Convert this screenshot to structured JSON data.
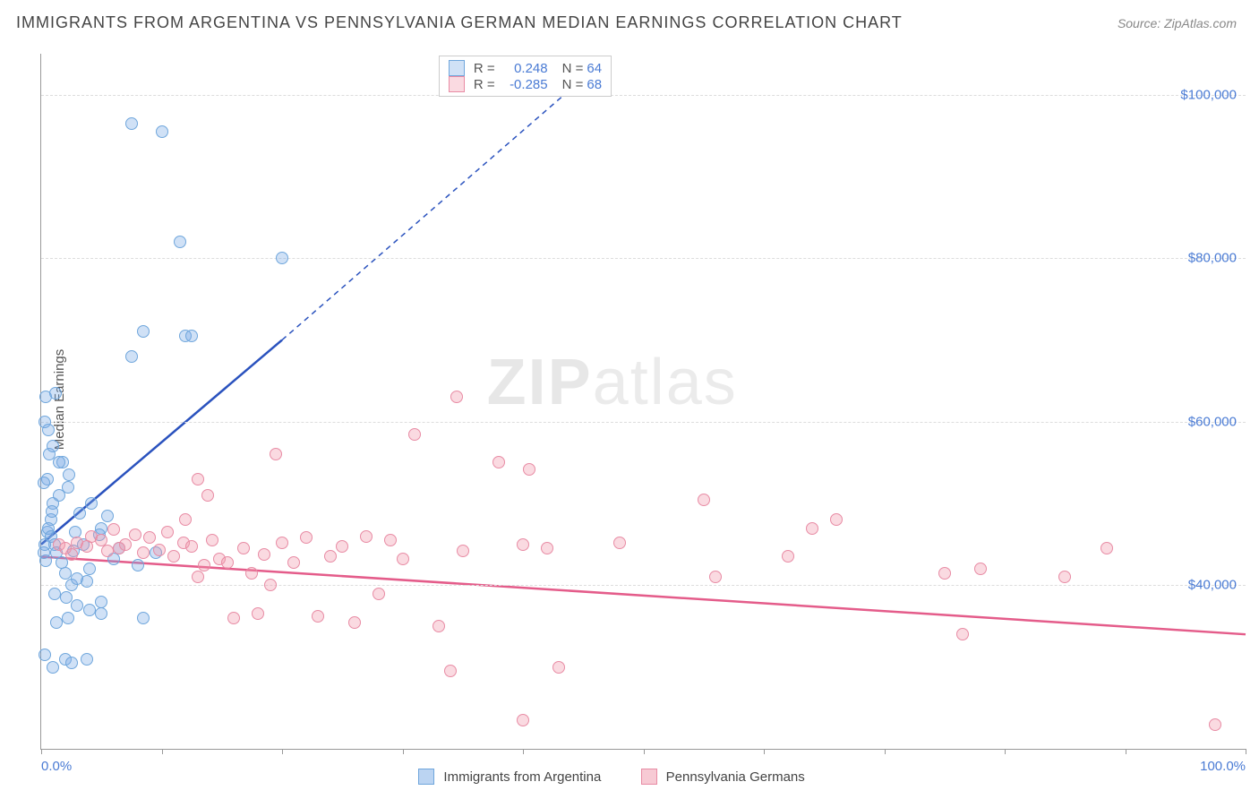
{
  "title": "IMMIGRANTS FROM ARGENTINA VS PENNSYLVANIA GERMAN MEDIAN EARNINGS CORRELATION CHART",
  "source": "Source: ZipAtlas.com",
  "ylabel": "Median Earnings",
  "watermark_a": "ZIP",
  "watermark_b": "atlas",
  "chart": {
    "type": "scatter",
    "xlim": [
      0,
      100
    ],
    "ylim": [
      20000,
      105000
    ],
    "yticks": [
      40000,
      60000,
      80000,
      100000
    ],
    "ytick_labels": [
      "$40,000",
      "$60,000",
      "$80,000",
      "$100,000"
    ],
    "xticks": [
      0,
      10,
      20,
      30,
      40,
      50,
      60,
      70,
      80,
      90,
      100
    ],
    "xmin_label": "0.0%",
    "xmax_label": "100.0%",
    "grid_color": "#dddddd",
    "marker_radius": 7,
    "series": [
      {
        "name": "Immigrants from Argentina",
        "fill": "rgba(120,170,230,0.35)",
        "stroke": "#6fa6dc",
        "line_color": "#2a52be",
        "r_label": "R =",
        "r_value": "0.248",
        "n_label": "N =",
        "n_value": "64",
        "regression": {
          "x1": 0,
          "y1": 45000,
          "x2": 20,
          "y2": 70000,
          "dash_to_x": 45,
          "dash_to_y": 102000
        },
        "points": [
          [
            0.3,
            45000
          ],
          [
            0.5,
            46500
          ],
          [
            0.8,
            48000
          ],
          [
            0.4,
            43000
          ],
          [
            1.0,
            50000
          ],
          [
            0.6,
            47000
          ],
          [
            0.2,
            44000
          ],
          [
            0.9,
            49000
          ],
          [
            0.4,
            63000
          ],
          [
            1.2,
            63500
          ],
          [
            1.8,
            55000
          ],
          [
            2.2,
            52000
          ],
          [
            0.7,
            56000
          ],
          [
            1.5,
            55000
          ],
          [
            1.0,
            57000
          ],
          [
            0.5,
            53000
          ],
          [
            0.3,
            60000
          ],
          [
            0.8,
            46000
          ],
          [
            1.1,
            45000
          ],
          [
            1.3,
            44000
          ],
          [
            2.8,
            46500
          ],
          [
            3.5,
            45000
          ],
          [
            5.0,
            47000
          ],
          [
            4.2,
            50000
          ],
          [
            4.0,
            37000
          ],
          [
            5.0,
            38000
          ],
          [
            3.0,
            37500
          ],
          [
            1.1,
            39000
          ],
          [
            2.1,
            38500
          ],
          [
            1.3,
            35500
          ],
          [
            2.5,
            40000
          ],
          [
            3.8,
            40500
          ],
          [
            2.0,
            31000
          ],
          [
            3.8,
            31000
          ],
          [
            1.0,
            30000
          ],
          [
            2.5,
            30500
          ],
          [
            0.3,
            31500
          ],
          [
            2.2,
            36000
          ],
          [
            3.0,
            40800
          ],
          [
            5.0,
            36500
          ],
          [
            8.5,
            36000
          ],
          [
            8.0,
            42500
          ],
          [
            9.5,
            44000
          ],
          [
            10.0,
            95500
          ],
          [
            7.5,
            96500
          ],
          [
            11.5,
            82000
          ],
          [
            20.0,
            80000
          ],
          [
            12.0,
            70500
          ],
          [
            12.5,
            70500
          ],
          [
            8.5,
            71000
          ],
          [
            7.5,
            68000
          ],
          [
            4.0,
            42000
          ],
          [
            2.0,
            41500
          ],
          [
            1.7,
            42800
          ],
          [
            6.0,
            43200
          ],
          [
            6.5,
            44500
          ],
          [
            1.5,
            51000
          ],
          [
            2.3,
            53500
          ],
          [
            0.2,
            52500
          ],
          [
            0.6,
            59000
          ],
          [
            5.5,
            48500
          ],
          [
            4.8,
            46200
          ],
          [
            3.2,
            48800
          ],
          [
            2.7,
            44200
          ]
        ]
      },
      {
        "name": "Pennsylvania Germans",
        "fill": "rgba(240,150,170,0.35)",
        "stroke": "#e88ba4",
        "line_color": "#e45c8a",
        "r_label": "R =",
        "r_value": "-0.285",
        "n_label": "N =",
        "n_value": "68",
        "regression": {
          "x1": 0,
          "y1": 43500,
          "x2": 100,
          "y2": 34000
        },
        "points": [
          [
            1.5,
            45000
          ],
          [
            2.0,
            44500
          ],
          [
            2.5,
            43800
          ],
          [
            3.0,
            45200
          ],
          [
            3.8,
            44800
          ],
          [
            4.2,
            46000
          ],
          [
            5.0,
            45500
          ],
          [
            5.5,
            44200
          ],
          [
            6.0,
            46800
          ],
          [
            6.5,
            44500
          ],
          [
            7.0,
            45000
          ],
          [
            7.8,
            46200
          ],
          [
            8.5,
            44000
          ],
          [
            9.0,
            45800
          ],
          [
            9.8,
            44300
          ],
          [
            10.5,
            46500
          ],
          [
            11.0,
            43500
          ],
          [
            11.8,
            45200
          ],
          [
            12.5,
            44800
          ],
          [
            13.0,
            41000
          ],
          [
            13.5,
            42500
          ],
          [
            14.2,
            45500
          ],
          [
            14.8,
            43200
          ],
          [
            15.5,
            42800
          ],
          [
            16.0,
            36000
          ],
          [
            16.8,
            44500
          ],
          [
            17.5,
            41500
          ],
          [
            18.0,
            36500
          ],
          [
            18.5,
            43800
          ],
          [
            19.0,
            40000
          ],
          [
            12.0,
            48000
          ],
          [
            13.0,
            53000
          ],
          [
            20.0,
            45200
          ],
          [
            21.0,
            42800
          ],
          [
            22.0,
            45800
          ],
          [
            23.0,
            36200
          ],
          [
            24.0,
            43500
          ],
          [
            25.0,
            44800
          ],
          [
            26.0,
            35500
          ],
          [
            27.0,
            46000
          ],
          [
            28.0,
            39000
          ],
          [
            29.0,
            45500
          ],
          [
            30.0,
            43200
          ],
          [
            31.0,
            58500
          ],
          [
            33.0,
            35000
          ],
          [
            34.0,
            29500
          ],
          [
            35.0,
            44200
          ],
          [
            34.5,
            63000
          ],
          [
            38.0,
            55000
          ],
          [
            40.0,
            45000
          ],
          [
            40.0,
            23500
          ],
          [
            42.0,
            44500
          ],
          [
            43.0,
            30000
          ],
          [
            40.5,
            54200
          ],
          [
            48.0,
            45200
          ],
          [
            55.0,
            50500
          ],
          [
            56.0,
            41000
          ],
          [
            62.0,
            43500
          ],
          [
            64.0,
            47000
          ],
          [
            66.0,
            48000
          ],
          [
            75.0,
            41500
          ],
          [
            76.5,
            34000
          ],
          [
            78.0,
            42000
          ],
          [
            85.0,
            41000
          ],
          [
            88.5,
            44500
          ],
          [
            97.5,
            23000
          ],
          [
            13.8,
            51000
          ],
          [
            19.5,
            56000
          ]
        ]
      }
    ],
    "legend_bottom": [
      {
        "label": "Immigrants from Argentina",
        "fill": "rgba(120,170,230,0.5)",
        "stroke": "#6fa6dc"
      },
      {
        "label": "Pennsylvania Germans",
        "fill": "rgba(240,150,170,0.5)",
        "stroke": "#e88ba4"
      }
    ]
  }
}
